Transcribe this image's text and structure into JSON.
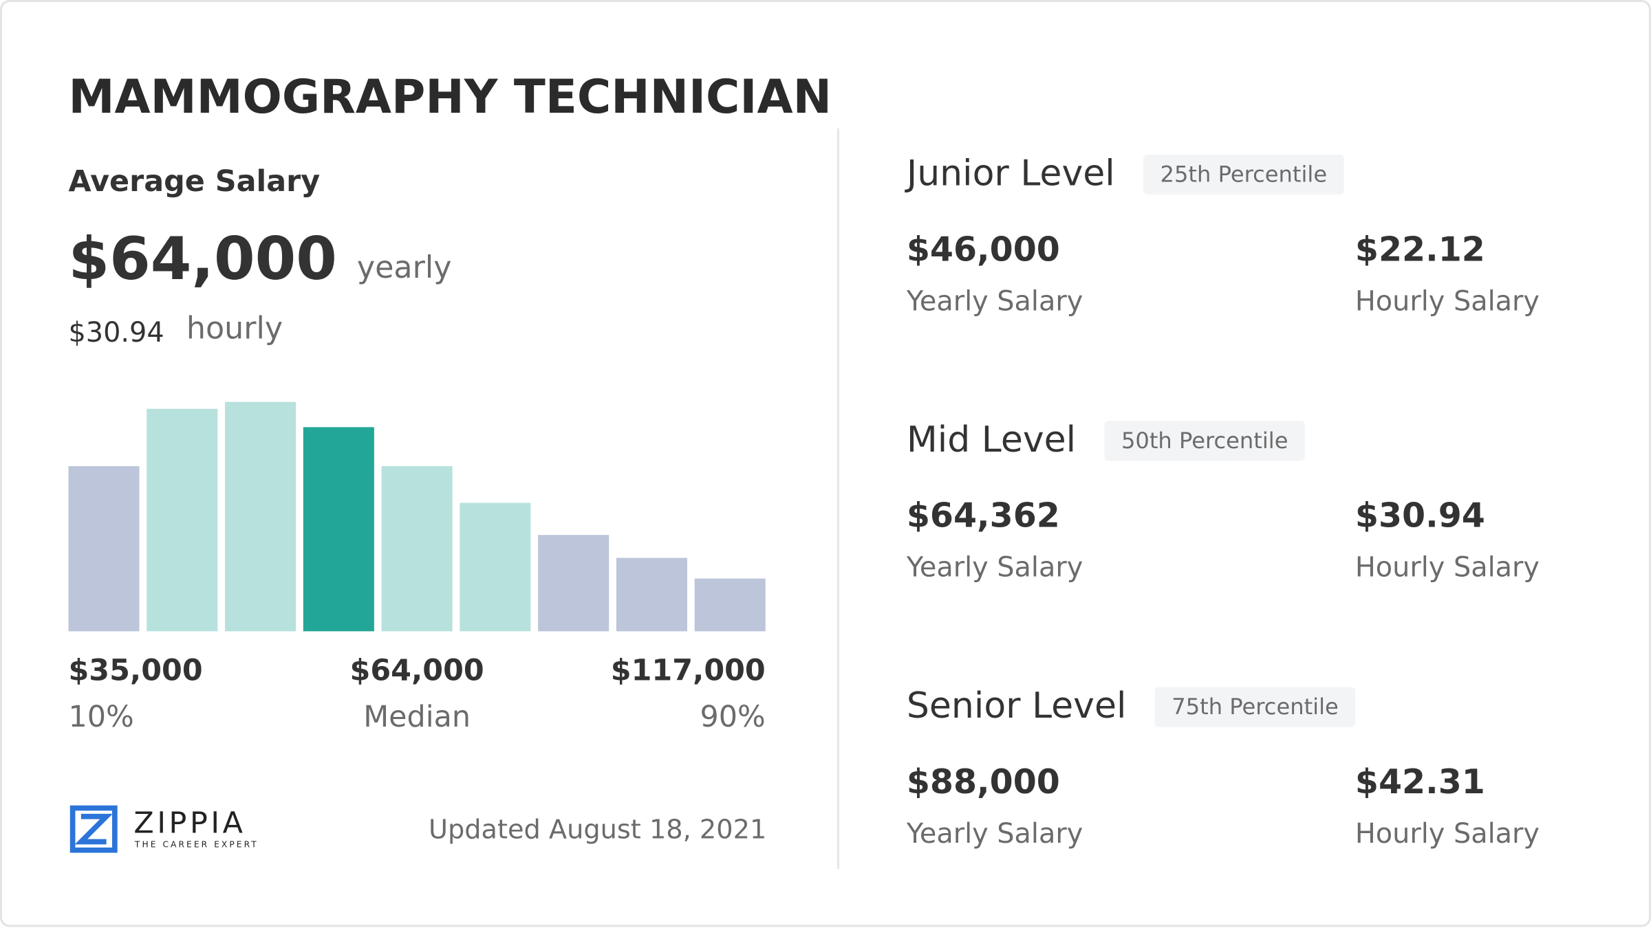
{
  "title": "MAMMOGRAPHY TECHNICIAN",
  "average": {
    "label": "Average Salary",
    "yearly": "$64,000",
    "yearly_unit": "yearly",
    "hourly": "$30.94",
    "hourly_unit": "hourly"
  },
  "chart_data": {
    "type": "bar",
    "values": [
      72,
      97,
      100,
      89,
      72,
      56,
      42,
      32,
      23
    ],
    "colors": [
      "#bcc5da",
      "#b7e1dc",
      "#b7e1dc",
      "#22a697",
      "#b7e1dc",
      "#b7e1dc",
      "#bcc5da",
      "#bcc5da",
      "#bcc5da"
    ],
    "ylim": [
      0,
      100
    ]
  },
  "range_labels": [
    {
      "value": "$35,000",
      "label": "10%"
    },
    {
      "value": "$64,000",
      "label": "Median"
    },
    {
      "value": "$117,000",
      "label": "90%"
    }
  ],
  "logo": {
    "name": "ZIPPIA",
    "tagline": "THE CAREER EXPERT"
  },
  "updated": "Updated August 18, 2021",
  "levels": [
    {
      "name": "Junior Level",
      "percentile": "25th Percentile",
      "yearly": "$46,000",
      "yearly_label": "Yearly Salary",
      "hourly": "$22.12",
      "hourly_label": "Hourly Salary"
    },
    {
      "name": "Mid Level",
      "percentile": "50th Percentile",
      "yearly": "$64,362",
      "yearly_label": "Yearly Salary",
      "hourly": "$30.94",
      "hourly_label": "Hourly Salary"
    },
    {
      "name": "Senior Level",
      "percentile": "75th Percentile",
      "yearly": "$88,000",
      "yearly_label": "Yearly Salary",
      "hourly": "$42.31",
      "hourly_label": "Hourly Salary"
    }
  ]
}
